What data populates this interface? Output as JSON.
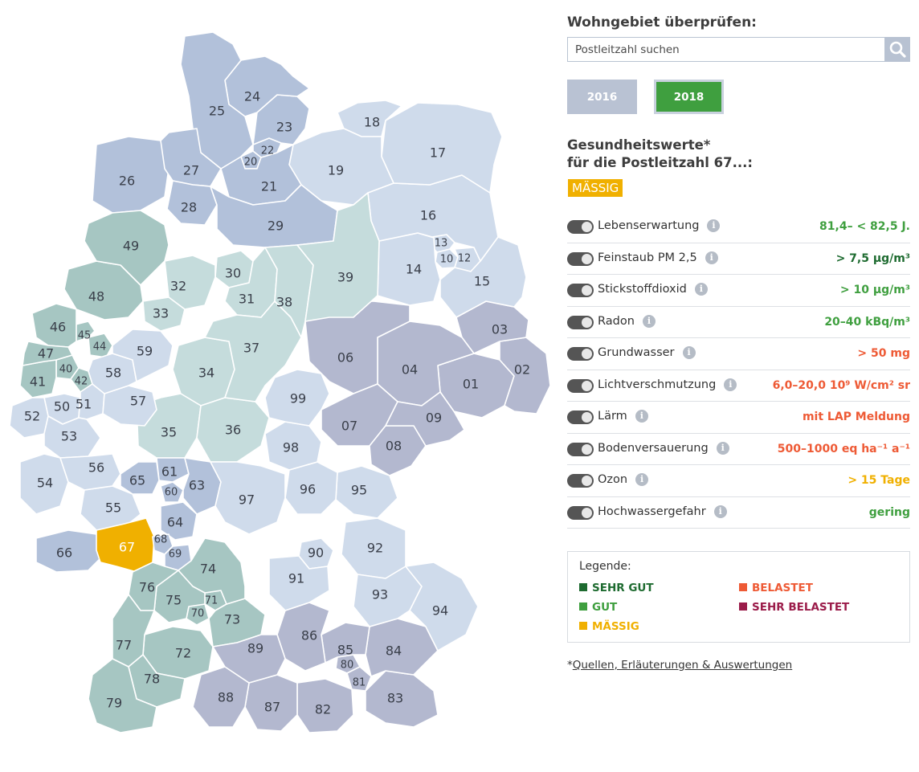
{
  "search": {
    "title": "Wohngebiet überprüfen:",
    "placeholder": "Postleitzahl suchen",
    "value": "",
    "button_icon": "search-icon"
  },
  "years": [
    {
      "label": "2016",
      "active": false
    },
    {
      "label": "2018",
      "active": true
    }
  ],
  "health": {
    "title_line1": "Gesundheitswerte*",
    "title_line2": "für die Postleitzahl 67...:",
    "rating": "MÄSSIG",
    "rating_color": "#f0b000"
  },
  "metrics": [
    {
      "label": "Lebenserwartung",
      "value": "81,4– < 82,5 J.",
      "color": "#3f9f3f"
    },
    {
      "label": "Feinstaub PM 2,5",
      "value": "> 7,5 µg/m³",
      "color": "#1e6b30"
    },
    {
      "label": "Stickstoffdioxid",
      "value": "> 10 µg/m³",
      "color": "#3f9f3f"
    },
    {
      "label": "Radon",
      "value": "20–40 kBq/m³",
      "color": "#3f9f3f"
    },
    {
      "label": "Grundwasser",
      "value": "> 50 mg",
      "color": "#ee5a35"
    },
    {
      "label": "Lichtverschmutzung",
      "value": "6,0–20,0 10⁹ W/cm² sr",
      "color": "#ee5a35"
    },
    {
      "label": "Lärm",
      "value": "mit LAP Meldung",
      "color": "#ee5a35"
    },
    {
      "label": "Bodenversauerung",
      "value": "500–1000 eq ha⁻¹ a⁻¹",
      "color": "#ee5a35"
    },
    {
      "label": "Ozon",
      "value": "> 15 Tage",
      "color": "#f0b000"
    },
    {
      "label": "Hochwassergefahr",
      "value": "gering",
      "color": "#3f9f3f"
    }
  ],
  "legend": {
    "title": "Legende:",
    "items": [
      {
        "label": "SEHR GUT",
        "color": "#1e6b30"
      },
      {
        "label": "GUT",
        "color": "#3f9f3f"
      },
      {
        "label": "MÄSSIG",
        "color": "#f0b000"
      },
      {
        "label": "BELASTET",
        "color": "#ee5a35"
      },
      {
        "label": "SEHR BELASTET",
        "color": "#9b1c4a"
      }
    ]
  },
  "footnote": {
    "prefix": "*",
    "link": "Quellen, Erläuterungen & Auswertungen"
  },
  "map": {
    "selected": "67",
    "colors": {
      "selected": "#f0b000",
      "blue_light": "#cfdbeb",
      "blue_mid": "#b2c1da",
      "green_light": "#c5dcdc",
      "green_mid": "#a6c6c2",
      "lavender": "#b3b8cf"
    },
    "regions": [
      {
        "plz": "01",
        "tone": "lavender"
      },
      {
        "plz": "02",
        "tone": "lavender"
      },
      {
        "plz": "03",
        "tone": "lavender"
      },
      {
        "plz": "04",
        "tone": "lavender"
      },
      {
        "plz": "06",
        "tone": "lavender"
      },
      {
        "plz": "07",
        "tone": "lavender"
      },
      {
        "plz": "08",
        "tone": "lavender"
      },
      {
        "plz": "09",
        "tone": "lavender"
      },
      {
        "plz": "10",
        "tone": "blue_light"
      },
      {
        "plz": "12",
        "tone": "blue_light"
      },
      {
        "plz": "13",
        "tone": "blue_light"
      },
      {
        "plz": "14",
        "tone": "blue_light"
      },
      {
        "plz": "15",
        "tone": "blue_light"
      },
      {
        "plz": "16",
        "tone": "blue_light"
      },
      {
        "plz": "17",
        "tone": "blue_light"
      },
      {
        "plz": "18",
        "tone": "blue_light"
      },
      {
        "plz": "19",
        "tone": "blue_light"
      },
      {
        "plz": "20",
        "tone": "blue_mid"
      },
      {
        "plz": "21",
        "tone": "blue_mid"
      },
      {
        "plz": "22",
        "tone": "blue_mid"
      },
      {
        "plz": "23",
        "tone": "blue_mid"
      },
      {
        "plz": "24",
        "tone": "blue_mid"
      },
      {
        "plz": "25",
        "tone": "blue_mid"
      },
      {
        "plz": "26",
        "tone": "blue_mid"
      },
      {
        "plz": "27",
        "tone": "blue_mid"
      },
      {
        "plz": "28",
        "tone": "blue_mid"
      },
      {
        "plz": "29",
        "tone": "blue_mid"
      },
      {
        "plz": "30",
        "tone": "green_light"
      },
      {
        "plz": "31",
        "tone": "green_light"
      },
      {
        "plz": "32",
        "tone": "green_light"
      },
      {
        "plz": "33",
        "tone": "green_light"
      },
      {
        "plz": "34",
        "tone": "green_light"
      },
      {
        "plz": "35",
        "tone": "green_light"
      },
      {
        "plz": "36",
        "tone": "green_light"
      },
      {
        "plz": "37",
        "tone": "green_light"
      },
      {
        "plz": "38",
        "tone": "green_light"
      },
      {
        "plz": "39",
        "tone": "green_light"
      },
      {
        "plz": "40",
        "tone": "green_mid"
      },
      {
        "plz": "41",
        "tone": "green_mid"
      },
      {
        "plz": "42",
        "tone": "green_mid"
      },
      {
        "plz": "44",
        "tone": "green_mid"
      },
      {
        "plz": "45",
        "tone": "green_mid"
      },
      {
        "plz": "46",
        "tone": "green_mid"
      },
      {
        "plz": "47",
        "tone": "green_mid"
      },
      {
        "plz": "48",
        "tone": "green_mid"
      },
      {
        "plz": "49",
        "tone": "green_mid"
      },
      {
        "plz": "50",
        "tone": "blue_light"
      },
      {
        "plz": "51",
        "tone": "blue_light"
      },
      {
        "plz": "52",
        "tone": "blue_light"
      },
      {
        "plz": "53",
        "tone": "blue_light"
      },
      {
        "plz": "54",
        "tone": "blue_light"
      },
      {
        "plz": "55",
        "tone": "blue_light"
      },
      {
        "plz": "56",
        "tone": "blue_light"
      },
      {
        "plz": "57",
        "tone": "blue_light"
      },
      {
        "plz": "58",
        "tone": "blue_light"
      },
      {
        "plz": "59",
        "tone": "blue_light"
      },
      {
        "plz": "60",
        "tone": "blue_mid"
      },
      {
        "plz": "61",
        "tone": "blue_mid"
      },
      {
        "plz": "63",
        "tone": "blue_mid"
      },
      {
        "plz": "64",
        "tone": "blue_mid"
      },
      {
        "plz": "65",
        "tone": "blue_mid"
      },
      {
        "plz": "66",
        "tone": "blue_mid"
      },
      {
        "plz": "67",
        "tone": "selected"
      },
      {
        "plz": "68",
        "tone": "blue_mid"
      },
      {
        "plz": "69",
        "tone": "blue_mid"
      },
      {
        "plz": "70",
        "tone": "green_mid"
      },
      {
        "plz": "71",
        "tone": "green_mid"
      },
      {
        "plz": "72",
        "tone": "green_mid"
      },
      {
        "plz": "73",
        "tone": "green_mid"
      },
      {
        "plz": "74",
        "tone": "green_mid"
      },
      {
        "plz": "75",
        "tone": "green_mid"
      },
      {
        "plz": "76",
        "tone": "green_mid"
      },
      {
        "plz": "77",
        "tone": "green_mid"
      },
      {
        "plz": "78",
        "tone": "green_mid"
      },
      {
        "plz": "79",
        "tone": "green_mid"
      },
      {
        "plz": "80",
        "tone": "lavender"
      },
      {
        "plz": "81",
        "tone": "lavender"
      },
      {
        "plz": "82",
        "tone": "lavender"
      },
      {
        "plz": "83",
        "tone": "lavender"
      },
      {
        "plz": "84",
        "tone": "lavender"
      },
      {
        "plz": "85",
        "tone": "lavender"
      },
      {
        "plz": "86",
        "tone": "lavender"
      },
      {
        "plz": "87",
        "tone": "lavender"
      },
      {
        "plz": "88",
        "tone": "lavender"
      },
      {
        "plz": "89",
        "tone": "lavender"
      },
      {
        "plz": "90",
        "tone": "blue_light"
      },
      {
        "plz": "91",
        "tone": "blue_light"
      },
      {
        "plz": "92",
        "tone": "blue_light"
      },
      {
        "plz": "93",
        "tone": "blue_light"
      },
      {
        "plz": "94",
        "tone": "blue_light"
      },
      {
        "plz": "95",
        "tone": "blue_light"
      },
      {
        "plz": "96",
        "tone": "blue_light"
      },
      {
        "plz": "97",
        "tone": "blue_light"
      },
      {
        "plz": "98",
        "tone": "blue_light"
      },
      {
        "plz": "99",
        "tone": "blue_light"
      }
    ]
  }
}
